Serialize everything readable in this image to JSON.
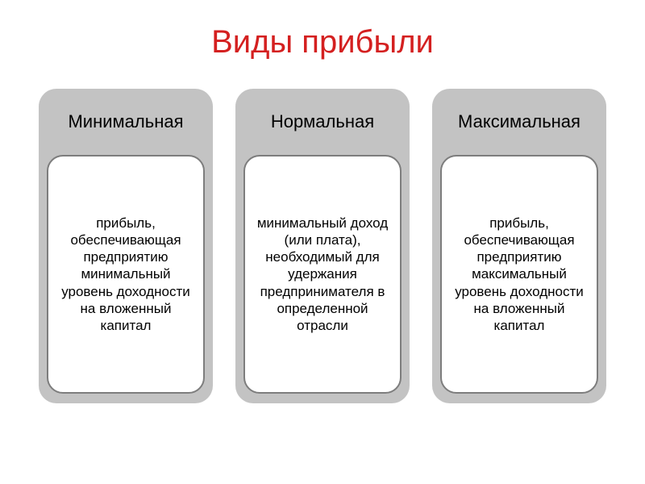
{
  "title": "Виды прибыли",
  "title_color": "#d42020",
  "background": "#ffffff",
  "card_bg": "#c3c3c3",
  "card_inner_bg": "#ffffff",
  "card_inner_border": "#7d7d7d",
  "cards": [
    {
      "heading": "Минимальная",
      "description": "прибыль, обеспечивающая предприятию минимальный уровень доходности на вложенный капитал"
    },
    {
      "heading": "Нормальная",
      "description": "минимальный доход (или плата), необходимый для удержания предпринимателя в определенной отрасли"
    },
    {
      "heading": "Максимальная",
      "description": "прибыль, обеспечивающая предприятию максимальный уровень доходности на вложенный капитал"
    }
  ]
}
